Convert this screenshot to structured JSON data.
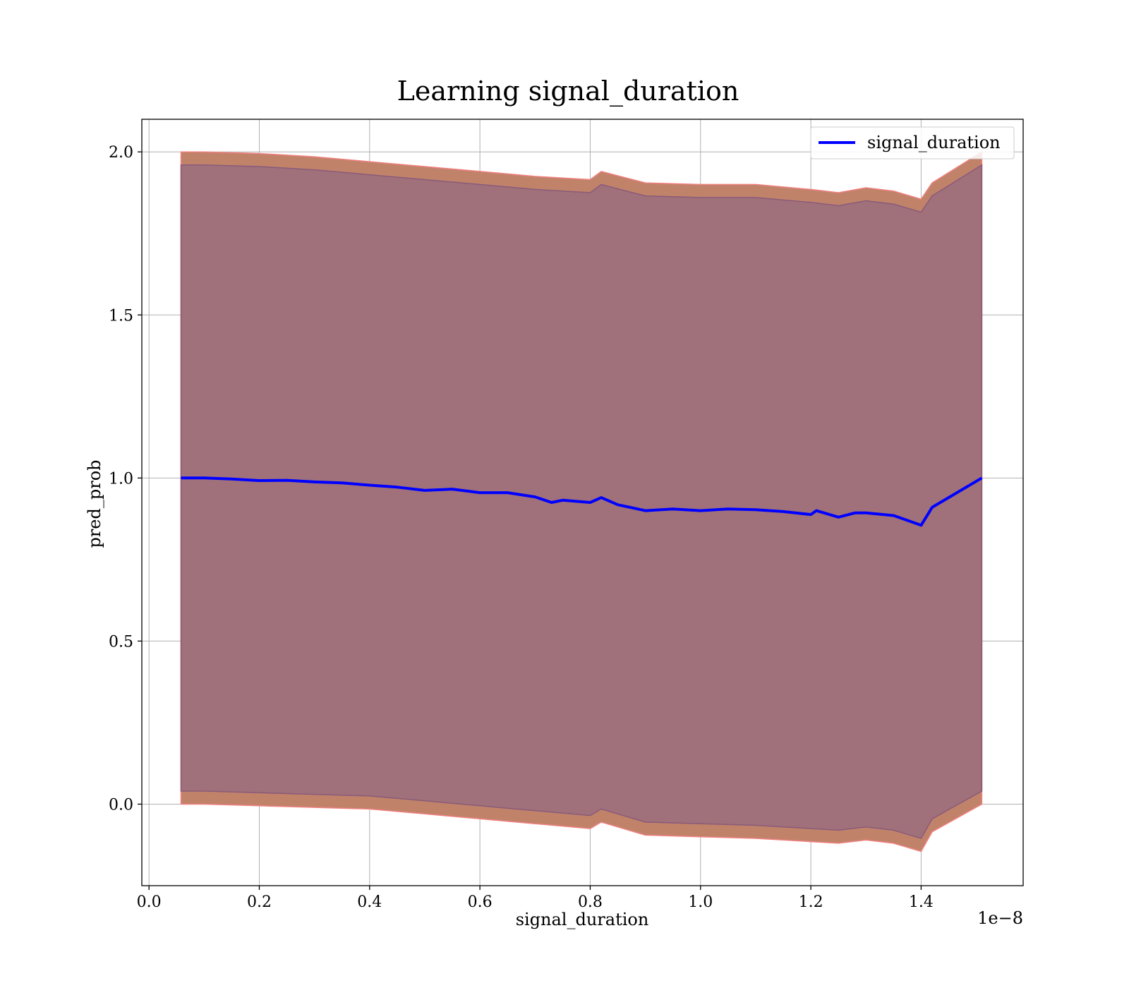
{
  "chart_data": {
    "type": "line",
    "title": "Learning signal_duration",
    "xlabel": "signal_duration",
    "ylabel": "pred_prob",
    "x_offset_label": "1e−8",
    "xlim": [
      -0.013,
      1.585
    ],
    "ylim": [
      -0.25,
      2.1
    ],
    "xticks": [
      0.0,
      0.2,
      0.4,
      0.6,
      0.8,
      1.0,
      1.2,
      1.4
    ],
    "xtick_labels": [
      "0.0",
      "0.2",
      "0.4",
      "0.6",
      "0.8",
      "1.0",
      "1.2",
      "1.4"
    ],
    "yticks": [
      0.0,
      0.5,
      1.0,
      1.5,
      2.0
    ],
    "ytick_labels": [
      "0.0",
      "0.5",
      "1.0",
      "1.5",
      "2.0"
    ],
    "grid": true,
    "legend": {
      "position": "top-right",
      "entries": [
        "signal_duration"
      ]
    },
    "colors": {
      "line": "#0000ff",
      "outer_band": "#c0836a",
      "inner_band": "#a0717a",
      "outer_edge": "#f08080",
      "inner_edge": "#8a5a7a"
    },
    "series": [
      {
        "name": "signal_duration",
        "x": [
          0.058,
          0.08,
          0.1,
          0.15,
          0.2,
          0.25,
          0.3,
          0.35,
          0.4,
          0.45,
          0.5,
          0.55,
          0.6,
          0.65,
          0.7,
          0.73,
          0.75,
          0.8,
          0.82,
          0.85,
          0.9,
          0.95,
          1.0,
          1.05,
          1.1,
          1.15,
          1.2,
          1.21,
          1.25,
          1.28,
          1.3,
          1.35,
          1.4,
          1.42,
          1.51
        ],
        "y": [
          1.0,
          1.0,
          1.0,
          0.997,
          0.992,
          0.993,
          0.988,
          0.985,
          0.978,
          0.972,
          0.962,
          0.966,
          0.955,
          0.955,
          0.942,
          0.925,
          0.932,
          0.925,
          0.94,
          0.918,
          0.9,
          0.905,
          0.9,
          0.905,
          0.903,
          0.897,
          0.888,
          0.9,
          0.88,
          0.893,
          0.893,
          0.885,
          0.855,
          0.91,
          1.0
        ]
      }
    ],
    "bands": [
      {
        "name": "outer",
        "x": [
          0.058,
          0.1,
          0.2,
          0.3,
          0.4,
          0.5,
          0.6,
          0.7,
          0.8,
          0.82,
          0.9,
          1.0,
          1.1,
          1.2,
          1.25,
          1.3,
          1.35,
          1.4,
          1.42,
          1.51
        ],
        "upper": [
          2.0,
          2.0,
          1.995,
          1.985,
          1.97,
          1.955,
          1.94,
          1.925,
          1.915,
          1.94,
          1.905,
          1.9,
          1.9,
          1.885,
          1.875,
          1.89,
          1.88,
          1.855,
          1.905,
          2.0
        ],
        "lower": [
          0.0,
          0.0,
          -0.005,
          -0.01,
          -0.015,
          -0.03,
          -0.045,
          -0.06,
          -0.075,
          -0.055,
          -0.095,
          -0.1,
          -0.105,
          -0.115,
          -0.12,
          -0.11,
          -0.12,
          -0.145,
          -0.085,
          0.0
        ]
      },
      {
        "name": "inner",
        "x": [
          0.058,
          0.1,
          0.2,
          0.3,
          0.4,
          0.5,
          0.6,
          0.7,
          0.8,
          0.82,
          0.9,
          1.0,
          1.1,
          1.2,
          1.25,
          1.3,
          1.35,
          1.4,
          1.42,
          1.51
        ],
        "upper": [
          1.96,
          1.96,
          1.955,
          1.945,
          1.93,
          1.915,
          1.9,
          1.885,
          1.875,
          1.9,
          1.865,
          1.86,
          1.86,
          1.845,
          1.835,
          1.85,
          1.84,
          1.815,
          1.865,
          1.96
        ],
        "lower": [
          0.04,
          0.04,
          0.035,
          0.03,
          0.025,
          0.01,
          -0.005,
          -0.02,
          -0.035,
          -0.015,
          -0.055,
          -0.06,
          -0.065,
          -0.075,
          -0.08,
          -0.07,
          -0.08,
          -0.105,
          -0.045,
          0.04
        ]
      }
    ]
  }
}
